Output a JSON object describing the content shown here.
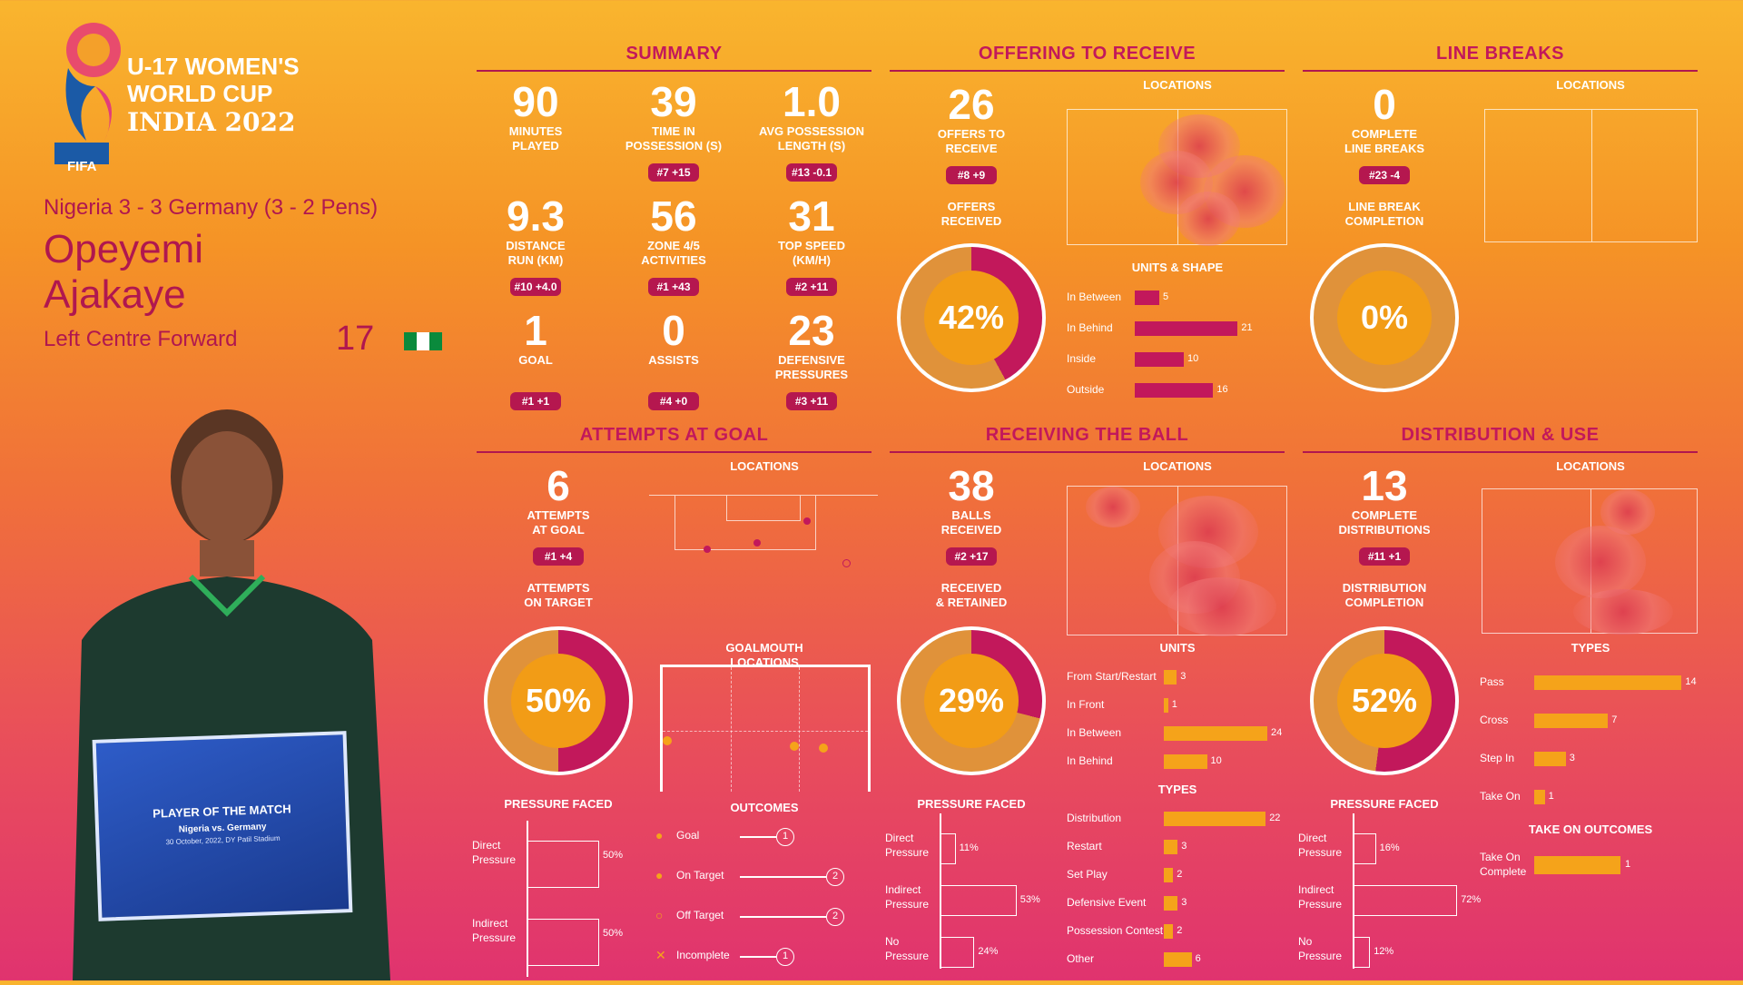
{
  "event": {
    "line1": "U-17 WOMEN'S",
    "line2": "WORLD CUP",
    "line3": "INDIA 2022",
    "fifa": "FIFA"
  },
  "match": "Nigeria 3 - 3 Germany (3 - 2 Pens)",
  "player": {
    "first": "Opeyemi",
    "last": "Ajakaye",
    "position": "Left Centre Forward",
    "number": "17"
  },
  "certificate": {
    "title": "PLAYER OF THE MATCH",
    "subtitle": "Nigeria vs. Germany",
    "date": "30 October, 2022, DY Patil Stadium"
  },
  "summary": {
    "title": "SUMMARY",
    "stats": [
      {
        "value": "90",
        "label1": "MINUTES",
        "label2": "PLAYED",
        "rank": ""
      },
      {
        "value": "39",
        "label1": "TIME IN",
        "label2": "POSSESSION (s)",
        "rank": "#7 +15"
      },
      {
        "value": "1.0",
        "label1": "AVG POSSESSION",
        "label2": "LENGTH (s)",
        "rank": "#13 -0.1"
      },
      {
        "value": "9.3",
        "label1": "DISTANCE",
        "label2": "RUN (KM)",
        "rank": "#10 +4.0"
      },
      {
        "value": "56",
        "label1": "ZONE 4/5",
        "label2": "ACTIVITIES",
        "rank": "#1 +43"
      },
      {
        "value": "31",
        "label1": "TOP SPEED",
        "label2": "(KM/H)",
        "rank": "#2 +11"
      },
      {
        "value": "1",
        "label1": "GOAL",
        "label2": "",
        "rank": "#1 +1"
      },
      {
        "value": "0",
        "label1": "ASSISTS",
        "label2": "",
        "rank": "#4 +0"
      },
      {
        "value": "23",
        "label1": "DEFENSIVE",
        "label2": "PRESSURES",
        "rank": "#3 +11"
      }
    ]
  },
  "offering": {
    "title": "OFFERING TO RECEIVE",
    "value": "26",
    "label1": "OFFERS TO",
    "label2": "RECEIVE",
    "rank": "#8 +9",
    "sub1": "OFFERS",
    "sub2": "RECEIVED",
    "pct": "42%",
    "pct_value": 42,
    "locations": "LOCATIONS",
    "units_title": "UNITS & SHAPE",
    "bars": [
      {
        "label": "In Between",
        "value": 5
      },
      {
        "label": "In Behind",
        "value": 21
      },
      {
        "label": "Inside",
        "value": 10
      },
      {
        "label": "Outside",
        "value": 16
      }
    ]
  },
  "linebreaks": {
    "title": "LINE BREAKS",
    "value": "0",
    "label1": "COMPLETE",
    "label2": "LINE BREAKS",
    "rank": "#23 -4",
    "sub1": "LINE BREAK",
    "sub2": "COMPLETION",
    "pct": "0%",
    "pct_value": 0,
    "locations": "LOCATIONS"
  },
  "attempts": {
    "title": "ATTEMPTS AT GOAL",
    "value": "6",
    "label1": "ATTEMPTS",
    "label2": "AT GOAL",
    "rank": "#1 +4",
    "sub1": "ATTEMPTS",
    "sub2": "ON TARGET",
    "pct": "50%",
    "pct_value": 50,
    "locations": "LOCATIONS",
    "goalmouth": "GOALMOUTH LOCATIONS",
    "pressure_title": "PRESSURE FACED",
    "pressure": [
      {
        "label1": "Direct",
        "label2": "Pressure",
        "pct": "50%",
        "value": 50
      },
      {
        "label1": "Indirect",
        "label2": "Pressure",
        "pct": "50%",
        "value": 50
      }
    ],
    "outcomes_title": "OUTCOMES",
    "outcomes": [
      {
        "label": "Goal",
        "count": "1"
      },
      {
        "label": "On Target",
        "count": "2"
      },
      {
        "label": "Off Target",
        "count": "2"
      },
      {
        "label": "Incomplete",
        "count": "1"
      }
    ]
  },
  "receiving": {
    "title": "RECEIVING THE BALL",
    "value": "38",
    "label1": "BALLS",
    "label2": "RECEIVED",
    "rank": "#2 +17",
    "sub1": "RECEIVED",
    "sub2": "& RETAINED",
    "pct": "29%",
    "pct_value": 29,
    "locations": "LOCATIONS",
    "units_title": "UNITS",
    "types_title": "TYPES",
    "pressure_title": "PRESSURE FACED",
    "pressure": [
      {
        "label1": "Direct",
        "label2": "Pressure",
        "pct": "11%",
        "value": 11
      },
      {
        "label1": "Indirect",
        "label2": "Pressure",
        "pct": "53%",
        "value": 53
      },
      {
        "label1": "No",
        "label2": "Pressure",
        "pct": "24%",
        "value": 24
      }
    ],
    "units": [
      {
        "label": "From Start/Restart",
        "value": 3
      },
      {
        "label": "In Front",
        "value": 1
      },
      {
        "label": "In Between",
        "value": 24
      },
      {
        "label": "In Behind",
        "value": 10
      }
    ],
    "types": [
      {
        "label": "Distribution",
        "value": 22
      },
      {
        "label": "Restart",
        "value": 3
      },
      {
        "label": "Set Play",
        "value": 2
      },
      {
        "label": "Defensive Event",
        "value": 3
      },
      {
        "label": "Possession Contest",
        "value": 2
      },
      {
        "label": "Other",
        "value": 6
      }
    ]
  },
  "distribution": {
    "title": "DISTRIBUTION & USE",
    "value": "13",
    "label1": "COMPLETE",
    "label2": "DISTRIBUTIONS",
    "rank": "#11 +1",
    "sub1": "DISTRIBUTION",
    "sub2": "COMPLETION",
    "pct": "52%",
    "pct_value": 52,
    "locations": "LOCATIONS",
    "types_title": "TYPES",
    "pressure_title": "PRESSURE FACED",
    "pressure": [
      {
        "label1": "Direct",
        "label2": "Pressure",
        "pct": "16%",
        "value": 16
      },
      {
        "label1": "Indirect",
        "label2": "Pressure",
        "pct": "72%",
        "value": 72
      },
      {
        "label1": "No",
        "label2": "Pressure",
        "pct": "12%",
        "value": 12
      }
    ],
    "types": [
      {
        "label": "Pass",
        "value": 14
      },
      {
        "label": "Cross",
        "value": 7
      },
      {
        "label": "Step In",
        "value": 3
      },
      {
        "label": "Take On",
        "value": 1
      }
    ],
    "takeon_title": "TAKE ON OUTCOMES",
    "takeon": [
      {
        "label1": "Take On",
        "label2": "Complete",
        "value": 1
      }
    ]
  },
  "colors": {
    "pink": "#c2185b",
    "orange": "#f29c16",
    "bar_orange": "#f5a31a"
  }
}
